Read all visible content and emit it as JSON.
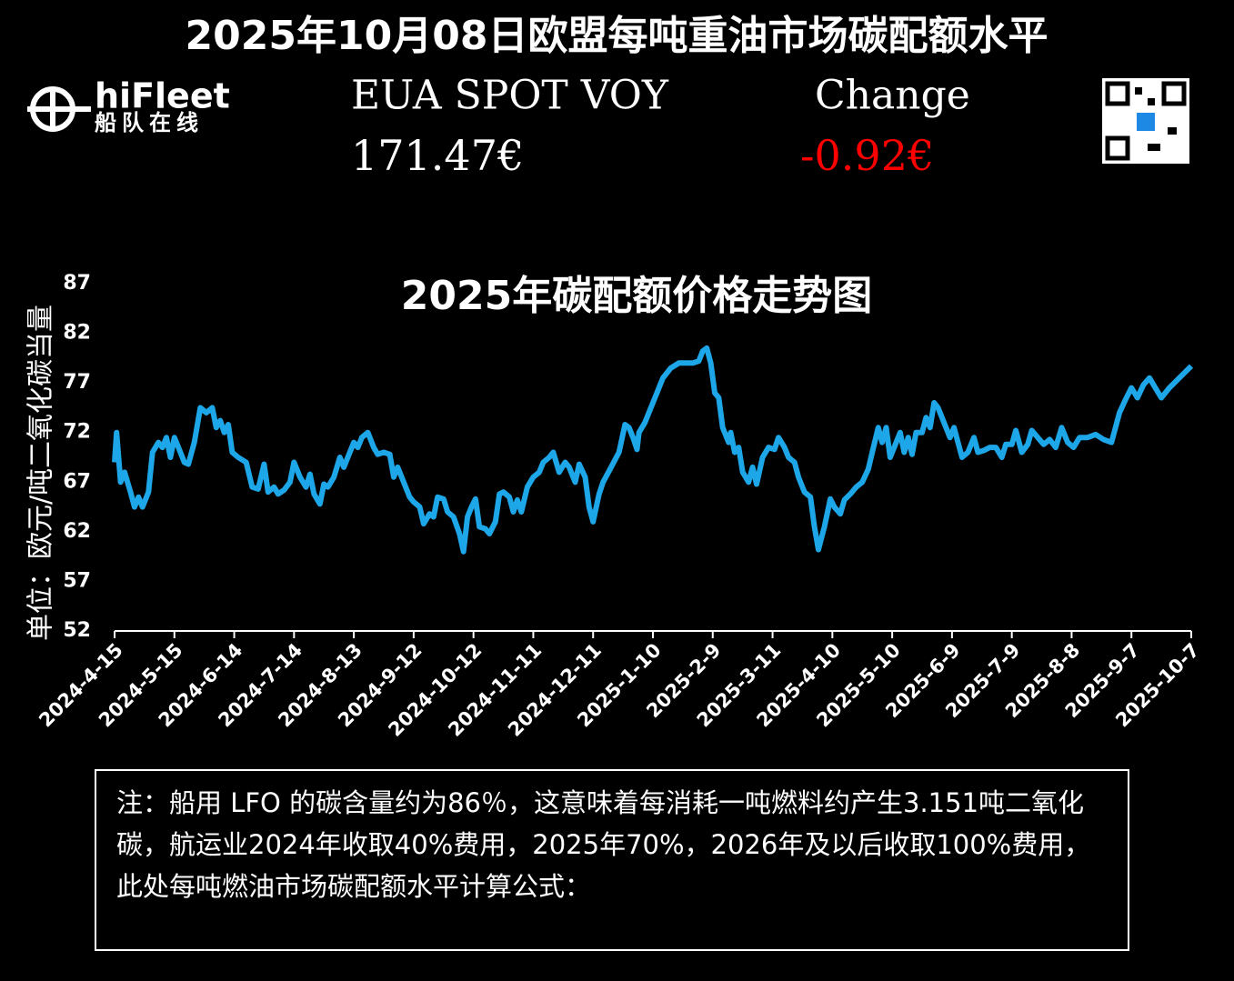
{
  "header": {
    "title": "2025年10月08日欧盟每吨重油市场碳配额水平",
    "logo_name": "hiFleet",
    "logo_subtitle": "船队在线",
    "label_left": "EUA SPOT VOY",
    "label_right": "Change",
    "value_left": "171.47€",
    "value_right": "-0.92€"
  },
  "chart_data": {
    "type": "line",
    "title": "2025年碳配额价格走势图",
    "ylabel": "单位：欧元/吨二氧化碳当量",
    "color": "#1ea7e8",
    "xlim": [
      "2024-4-15",
      "2025-10-7"
    ],
    "xticks": [
      "2024-4-15",
      "2024-5-15",
      "2024-6-14",
      "2024-7-14",
      "2024-8-13",
      "2024-9-12",
      "2024-10-12",
      "2024-11-11",
      "2024-12-11",
      "2025-1-10",
      "2025-2-9",
      "2025-3-11",
      "2025-4-10",
      "2025-5-10",
      "2025-6-9",
      "2025-7-9",
      "2025-8-8",
      "2025-9-7",
      "2025-10-7"
    ],
    "ylim": [
      52,
      87
    ],
    "yticks": [
      52,
      57,
      62,
      67,
      72,
      77,
      82,
      87
    ],
    "x": [
      "2024-4-15",
      "2024-4-16",
      "2024-4-18",
      "2024-4-20",
      "2024-4-23",
      "2024-4-25",
      "2024-4-27",
      "2024-4-29",
      "2024-5-2",
      "2024-5-4",
      "2024-5-7",
      "2024-5-9",
      "2024-5-11",
      "2024-5-13",
      "2024-5-15",
      "2024-5-18",
      "2024-5-20",
      "2024-5-22",
      "2024-5-25",
      "2024-5-28",
      "2024-5-31",
      "2024-6-3",
      "2024-6-5",
      "2024-6-7",
      "2024-6-9",
      "2024-6-11",
      "2024-6-13",
      "2024-6-16",
      "2024-6-20",
      "2024-6-23",
      "2024-6-26",
      "2024-6-29",
      "2024-7-1",
      "2024-7-4",
      "2024-7-6",
      "2024-7-9",
      "2024-7-12",
      "2024-7-14",
      "2024-7-17",
      "2024-7-20",
      "2024-7-22",
      "2024-7-24",
      "2024-7-27",
      "2024-7-29",
      "2024-7-31",
      "2024-8-3",
      "2024-8-6",
      "2024-8-8",
      "2024-8-11",
      "2024-8-13",
      "2024-8-15",
      "2024-8-17",
      "2024-8-20",
      "2024-8-23",
      "2024-8-25",
      "2024-8-28",
      "2024-8-31",
      "2024-9-2",
      "2024-9-4",
      "2024-9-7",
      "2024-9-10",
      "2024-9-12",
      "2024-9-15",
      "2024-9-17",
      "2024-9-20",
      "2024-9-22",
      "2024-9-24",
      "2024-9-27",
      "2024-9-29",
      "2024-10-2",
      "2024-10-5",
      "2024-10-7",
      "2024-10-9",
      "2024-10-11",
      "2024-10-13",
      "2024-10-15",
      "2024-10-18",
      "2024-10-20",
      "2024-10-23",
      "2024-10-25",
      "2024-10-27",
      "2024-10-30",
      "2024-11-1",
      "2024-11-3",
      "2024-11-5",
      "2024-11-8",
      "2024-11-11",
      "2024-11-14",
      "2024-11-16",
      "2024-11-19",
      "2024-11-21",
      "2024-11-24",
      "2024-11-27",
      "2024-11-29",
      "2024-12-2",
      "2024-12-4",
      "2024-12-7",
      "2024-12-9",
      "2024-12-11",
      "2024-12-14",
      "2024-12-16",
      "2024-12-20",
      "2024-12-24",
      "2024-12-27",
      "2024-12-29",
      "2024-12-31",
      "2025-1-2",
      "2025-1-3",
      "2025-1-6",
      "2025-1-9",
      "2025-1-12",
      "2025-1-15",
      "2025-1-19",
      "2025-1-23",
      "2025-1-30",
      "2025-2-2",
      "2025-2-4",
      "2025-2-6",
      "2025-2-8",
      "2025-2-10",
      "2025-2-12",
      "2025-2-14",
      "2025-2-17",
      "2025-2-18",
      "2025-2-20",
      "2025-2-22",
      "2025-2-24",
      "2025-2-27",
      "2025-3-1",
      "2025-3-3",
      "2025-3-6",
      "2025-3-9",
      "2025-3-12",
      "2025-3-14",
      "2025-3-17",
      "2025-3-19",
      "2025-3-22",
      "2025-3-24",
      "2025-3-27",
      "2025-3-30",
      "2025-4-1",
      "2025-4-3",
      "2025-4-6",
      "2025-4-9",
      "2025-4-11",
      "2025-4-14",
      "2025-4-16",
      "2025-4-19",
      "2025-4-22",
      "2025-4-25",
      "2025-4-28",
      "2025-4-30",
      "2025-5-3",
      "2025-5-5",
      "2025-5-7",
      "2025-5-9",
      "2025-5-12",
      "2025-5-14",
      "2025-5-16",
      "2025-5-18",
      "2025-5-20",
      "2025-5-22",
      "2025-5-25",
      "2025-5-27",
      "2025-5-29",
      "2025-5-31",
      "2025-6-2",
      "2025-6-5",
      "2025-6-8",
      "2025-6-10",
      "2025-6-12",
      "2025-6-14",
      "2025-6-17",
      "2025-6-20",
      "2025-6-22",
      "2025-6-25",
      "2025-6-28",
      "2025-7-1",
      "2025-7-4",
      "2025-7-6",
      "2025-7-9",
      "2025-7-11",
      "2025-7-14",
      "2025-7-17",
      "2025-7-19",
      "2025-7-22",
      "2025-7-25",
      "2025-7-28",
      "2025-7-31",
      "2025-8-3",
      "2025-8-6",
      "2025-8-9",
      "2025-8-12",
      "2025-8-16",
      "2025-8-20",
      "2025-8-24",
      "2025-8-28",
      "2025-9-1",
      "2025-9-4",
      "2025-9-7",
      "2025-9-10",
      "2025-9-13",
      "2025-9-16",
      "2025-9-19",
      "2025-9-22",
      "2025-9-26",
      "2025-10-1",
      "2025-10-7"
    ],
    "values": [
      69,
      72,
      67,
      68,
      66,
      64.5,
      65.5,
      64.5,
      66,
      70,
      71,
      70.5,
      71.5,
      69.5,
      71.5,
      70,
      69,
      68.8,
      71,
      74.5,
      74,
      74.5,
      72.5,
      73.2,
      72,
      72.8,
      70,
      69.5,
      69,
      66.5,
      66.3,
      68.8,
      66,
      66.5,
      65.8,
      66.2,
      67,
      69,
      67.5,
      66.5,
      67.8,
      65.8,
      64.8,
      66.8,
      66.5,
      67.5,
      69.5,
      68.5,
      70,
      71,
      70.5,
      71.5,
      72,
      70.5,
      69.8,
      70,
      69.8,
      67.5,
      68.5,
      67,
      65.5,
      65,
      64.5,
      62.8,
      63.8,
      63.5,
      65.5,
      65.3,
      64,
      63.5,
      61.8,
      60,
      63.5,
      64.5,
      65.3,
      62.5,
      62.3,
      61.8,
      63,
      65.8,
      66,
      65.5,
      64,
      65.2,
      64,
      66.5,
      67.5,
      68,
      69,
      69.5,
      70,
      68,
      69,
      68.5,
      67,
      68.8,
      67.5,
      64.5,
      63,
      65.8,
      67,
      68.5,
      70,
      72.8,
      72.5,
      71.5,
      70.3,
      72,
      73,
      74.5,
      76,
      77.5,
      78.5,
      79,
      79,
      79.2,
      80.2,
      80.5,
      79,
      76,
      75.5,
      72.5,
      71,
      72,
      70,
      70.5,
      68,
      67,
      68.5,
      66.8,
      69.5,
      70.5,
      70.3,
      71.5,
      70.5,
      69.5,
      69,
      67.5,
      66,
      65.5,
      62.5,
      60.2,
      62.5,
      65.3,
      64.5,
      63.8,
      65.2,
      65.8,
      66.5,
      67,
      68.3,
      70,
      72.5,
      71,
      72.5,
      69.5,
      71,
      72,
      70,
      71.5,
      69.8,
      72,
      72,
      73.5,
      72.5,
      75,
      74.5,
      73,
      71.5,
      72.5,
      71,
      69.5,
      70,
      71.5,
      70,
      70.2,
      70.5,
      70.5,
      69.5,
      70.8,
      70.8,
      72.2,
      70,
      70.8,
      72.2,
      71.5,
      70.8,
      71.3,
      70.5,
      72.5,
      71,
      70.5,
      71.5,
      71.5,
      71.8,
      71.3,
      71,
      74,
      75.3,
      76.5,
      75.5,
      76.8,
      77.5,
      76.5,
      75.5,
      76.5,
      77.5,
      78.7
    ]
  },
  "note": {
    "text": "注：船用 LFO 的碳含量约为86％，这意味着每消耗一吨燃料约产生3.151吨二氧化碳，航运业2024年收取40%费用，2025年70%，2026年及以后收取100%费用，此处每吨燃油市场碳配额水平计算公式："
  }
}
